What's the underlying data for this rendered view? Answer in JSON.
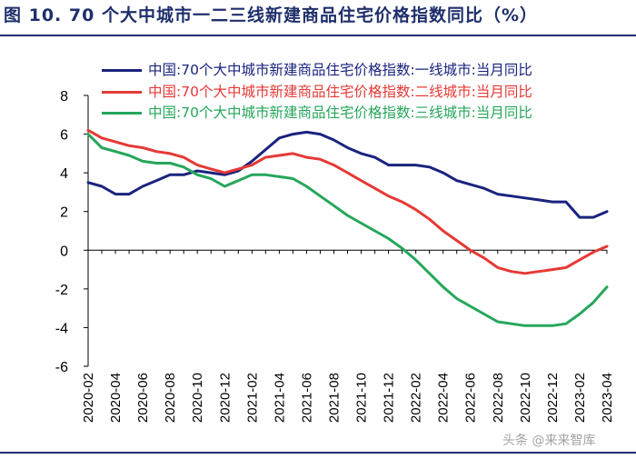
{
  "chart_data": {
    "type": "line",
    "title": "图 10. 70 个大中城市一二三线新建商品住宅价格指数同比（%）",
    "xlabel": "",
    "ylabel": "",
    "ylim": [
      -6,
      8
    ],
    "yticks": [
      8,
      6,
      4,
      2,
      0,
      -2,
      -4,
      -6
    ],
    "grid": false,
    "legend_position": "top",
    "x_labels": [
      "2020-02",
      "2020-04",
      "2020-06",
      "2020-08",
      "2020-10",
      "2020-12",
      "2021-02",
      "2021-04",
      "2021-06",
      "2021-08",
      "2021-10",
      "2021-12",
      "2022-02",
      "2022-04",
      "2022-06",
      "2022-08",
      "2022-10",
      "2022-12",
      "2023-02",
      "2023-04"
    ],
    "months": [
      "2020-02",
      "2020-03",
      "2020-04",
      "2020-05",
      "2020-06",
      "2020-07",
      "2020-08",
      "2020-09",
      "2020-10",
      "2020-11",
      "2020-12",
      "2021-01",
      "2021-02",
      "2021-03",
      "2021-04",
      "2021-05",
      "2021-06",
      "2021-07",
      "2021-08",
      "2021-09",
      "2021-10",
      "2021-11",
      "2021-12",
      "2022-01",
      "2022-02",
      "2022-03",
      "2022-04",
      "2022-05",
      "2022-06",
      "2022-07",
      "2022-08",
      "2022-09",
      "2022-10",
      "2022-11",
      "2022-12",
      "2023-01",
      "2023-02",
      "2023-03",
      "2023-04"
    ],
    "series": [
      {
        "name": "中国:70个大中城市新建商品住宅价格指数:一线城市:当月同比",
        "color": "#1a237e",
        "values": [
          3.5,
          3.3,
          2.9,
          2.9,
          3.3,
          3.6,
          3.9,
          3.9,
          4.1,
          4.0,
          3.9,
          4.1,
          4.6,
          5.2,
          5.8,
          6.0,
          6.1,
          6.0,
          5.7,
          5.3,
          5.0,
          4.8,
          4.4,
          4.4,
          4.4,
          4.3,
          4.0,
          3.6,
          3.4,
          3.2,
          2.9,
          2.8,
          2.7,
          2.6,
          2.5,
          2.5,
          1.7,
          1.7,
          2.0
        ]
      },
      {
        "name": "中国:70个大中城市新建商品住宅价格指数:二线城市:当月同比",
        "color": "#e53935",
        "values": [
          6.2,
          5.8,
          5.6,
          5.4,
          5.3,
          5.1,
          5.0,
          4.8,
          4.4,
          4.2,
          4.0,
          4.2,
          4.4,
          4.8,
          4.9,
          5.0,
          4.8,
          4.7,
          4.4,
          4.0,
          3.6,
          3.2,
          2.8,
          2.5,
          2.1,
          1.6,
          1.0,
          0.5,
          0.0,
          -0.4,
          -0.9,
          -1.1,
          -1.2,
          -1.1,
          -1.0,
          -0.9,
          -0.5,
          -0.1,
          0.2
        ]
      },
      {
        "name": "中国:70个大中城市新建商品住宅价格指数:三线城市:当月同比",
        "color": "#26a65b",
        "values": [
          6.0,
          5.3,
          5.1,
          4.9,
          4.6,
          4.5,
          4.5,
          4.3,
          3.9,
          3.7,
          3.3,
          3.6,
          3.9,
          3.9,
          3.8,
          3.7,
          3.3,
          2.8,
          2.3,
          1.8,
          1.4,
          1.0,
          0.6,
          0.1,
          -0.5,
          -1.2,
          -1.9,
          -2.5,
          -2.9,
          -3.3,
          -3.7,
          -3.8,
          -3.9,
          -3.9,
          -3.9,
          -3.8,
          -3.3,
          -2.7,
          -1.9
        ]
      }
    ]
  },
  "watermark": "头条 @来来智库"
}
